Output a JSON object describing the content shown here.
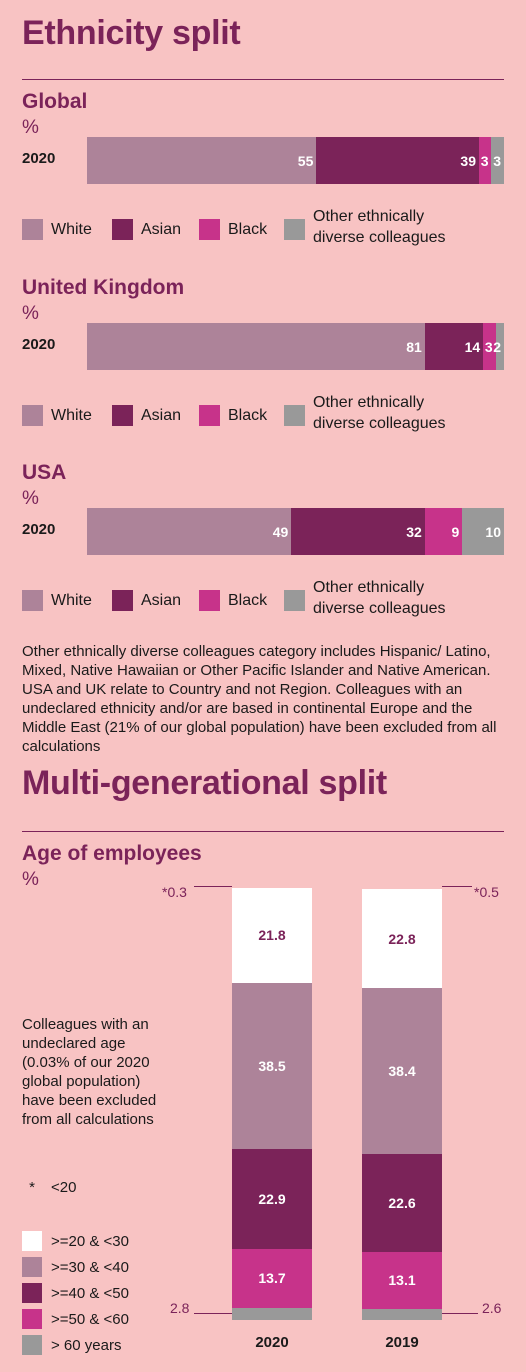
{
  "colors": {
    "white_group": "#ad8399",
    "asian": "#7b2359",
    "black": "#c7338a",
    "other": "#999999",
    "bg": "#f8c3c3",
    "age_under20": "#f8c3c3",
    "age_20_30": "#ffffff",
    "age_30_40": "#ad8399",
    "age_40_50": "#7b2359",
    "age_50_60": "#c7338a",
    "age_60plus": "#999999"
  },
  "ethnicity": {
    "title": "Ethnicity split",
    "legend": [
      "White",
      "Asian",
      "Black",
      "Other ethnically diverse colleagues"
    ],
    "note": "Other ethnically diverse colleagues category includes Hispanic/ Latino, Mixed, Native Hawaiian or Other Pacific Islander and Native American. USA and UK relate to Country and not Region. Colleagues with an undeclared ethnicity and/or are based in continental Europe and the Middle East (21% of our global population) have been excluded from all calculations"
  },
  "generational": {
    "title": "Multi-generational split",
    "subtitle": "Age of employees",
    "unit": "%",
    "note": "Colleagues with an undeclared age (0.03% of our 2020 global population) have been excluded from all calculations",
    "legend": [
      "<20",
      ">=20 & <30",
      ">=30 & <40",
      ">=40 & <50",
      ">=50 & <60",
      "> 60 years"
    ],
    "legend_star": "*",
    "markers": {
      "top_2020": "*0.3",
      "top_2019": "*0.5",
      "bottom_2020": "2.8",
      "bottom_2019": "2.6"
    }
  },
  "chart_data": [
    {
      "type": "bar",
      "orientation": "horizontal",
      "stacked": true,
      "title": "Global",
      "ylabel": "%",
      "categories": [
        "2020"
      ],
      "series": [
        {
          "name": "White",
          "values": [
            55
          ]
        },
        {
          "name": "Asian",
          "values": [
            39
          ]
        },
        {
          "name": "Black",
          "values": [
            3
          ]
        },
        {
          "name": "Other ethnically diverse colleagues",
          "values": [
            3
          ]
        }
      ],
      "legend_position": "bottom"
    },
    {
      "type": "bar",
      "orientation": "horizontal",
      "stacked": true,
      "title": "United Kingdom",
      "ylabel": "%",
      "categories": [
        "2020"
      ],
      "series": [
        {
          "name": "White",
          "values": [
            81
          ]
        },
        {
          "name": "Asian",
          "values": [
            14
          ]
        },
        {
          "name": "Black",
          "values": [
            3
          ]
        },
        {
          "name": "Other ethnically diverse colleagues",
          "values": [
            2
          ]
        }
      ],
      "legend_position": "bottom"
    },
    {
      "type": "bar",
      "orientation": "horizontal",
      "stacked": true,
      "title": "USA",
      "ylabel": "%",
      "categories": [
        "2020"
      ],
      "series": [
        {
          "name": "White",
          "values": [
            49
          ]
        },
        {
          "name": "Asian",
          "values": [
            32
          ]
        },
        {
          "name": "Black",
          "values": [
            9
          ]
        },
        {
          "name": "Other ethnically diverse colleagues",
          "values": [
            10
          ]
        }
      ],
      "legend_position": "bottom"
    },
    {
      "type": "bar",
      "orientation": "vertical",
      "stacked": true,
      "title": "Age of employees",
      "ylabel": "%",
      "categories": [
        "2020",
        "2019"
      ],
      "series": [
        {
          "name": "<20",
          "values": [
            0.3,
            0.5
          ]
        },
        {
          "name": ">=20 & <30",
          "values": [
            21.8,
            22.8
          ]
        },
        {
          "name": ">=30 & <40",
          "values": [
            38.5,
            38.4
          ]
        },
        {
          "name": ">=40 & <50",
          "values": [
            22.9,
            22.6
          ]
        },
        {
          "name": ">=50 & <60",
          "values": [
            13.7,
            13.1
          ]
        },
        {
          "name": "> 60 years",
          "values": [
            2.8,
            2.6
          ]
        }
      ],
      "legend_position": "bottom-left"
    }
  ]
}
